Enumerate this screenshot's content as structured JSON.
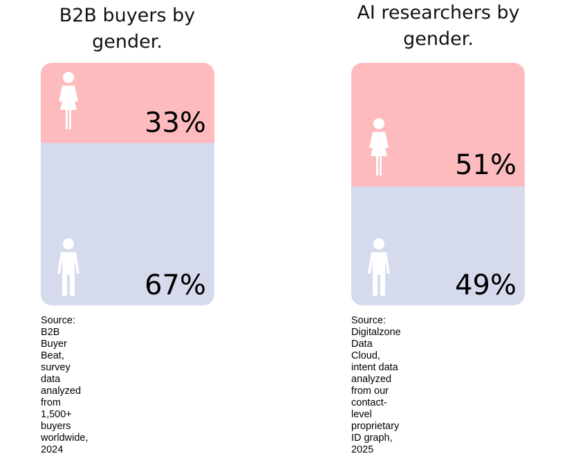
{
  "chart_data": [
    {
      "type": "stacked-bar",
      "title_lines": [
        "B2B buyers by",
        "gender."
      ],
      "series": [
        {
          "name": "female",
          "icon": "female-icon",
          "value": 33,
          "label": "33%",
          "color": "#fdbbbe"
        },
        {
          "name": "male",
          "icon": "male-icon",
          "value": 67,
          "label": "67%",
          "color": "#d5daed"
        }
      ],
      "source_lines": [
        "Source: B2B Buyer Beat, survey",
        "data analyzed from 1,500+ buyers",
        "worldwide, 2024"
      ]
    },
    {
      "type": "stacked-bar",
      "title_lines": [
        "AI researchers by",
        "gender."
      ],
      "series": [
        {
          "name": "female",
          "icon": "female-icon",
          "value": 51,
          "label": "51%",
          "color": "#fdbbbe"
        },
        {
          "name": "male",
          "icon": "male-icon",
          "value": 49,
          "label": "49%",
          "color": "#d5daed"
        }
      ],
      "source_lines": [
        "Source: Digitalzone Data Cloud,",
        "intent data analyzed from our",
        "contact-level proprietary ID graph,",
        "2025"
      ]
    }
  ]
}
